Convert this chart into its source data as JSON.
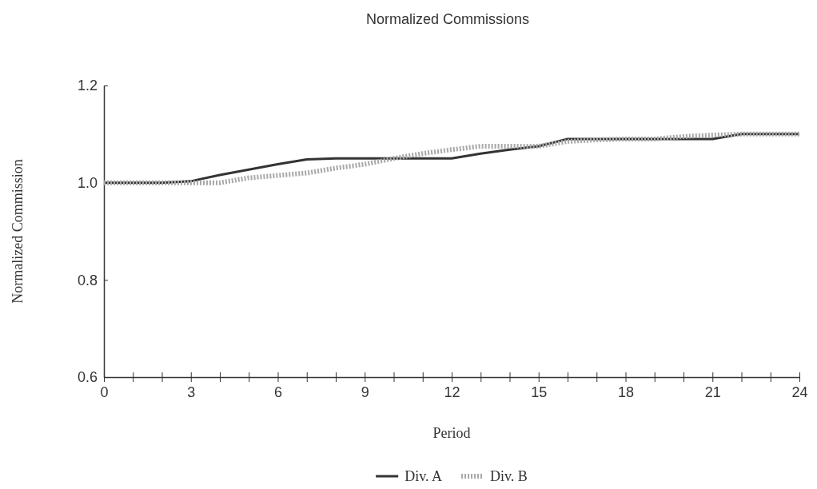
{
  "chart_data": {
    "type": "line",
    "title": "Normalized Commissions",
    "xlabel": "Period",
    "ylabel": "Normalized Commission",
    "xlim": [
      0,
      24
    ],
    "ylim": [
      0.6,
      1.2
    ],
    "xticks": [
      0,
      {
        "value": 1,
        "label": null
      },
      {
        "value": 2,
        "label": null
      },
      3,
      {
        "value": 4,
        "label": null
      },
      {
        "value": 5,
        "label": null
      },
      6,
      {
        "value": 7,
        "label": null
      },
      {
        "value": 8,
        "label": null
      },
      9,
      {
        "value": 10,
        "label": null
      },
      {
        "value": 11,
        "label": null
      },
      12,
      {
        "value": 13,
        "label": null
      },
      {
        "value": 14,
        "label": null
      },
      15,
      {
        "value": 16,
        "label": null
      },
      {
        "value": 17,
        "label": null
      },
      18,
      {
        "value": 19,
        "label": null
      },
      {
        "value": 20,
        "label": null
      },
      21,
      {
        "value": 22,
        "label": null
      },
      {
        "value": 23,
        "label": null
      },
      24
    ],
    "yticks": [
      0.6,
      0.8,
      {
        "value": 1,
        "label": "1.0"
      },
      1.2
    ],
    "x": [
      0,
      1,
      2,
      3,
      4,
      5,
      6,
      7,
      8,
      9,
      10,
      11,
      12,
      13,
      14,
      15,
      16,
      17,
      18,
      19,
      20,
      21,
      22,
      23,
      24
    ],
    "series": [
      {
        "name": "Div. A",
        "color": "#333333",
        "line_style": "solid",
        "values": [
          1.0,
          1.0,
          1.0,
          1.003,
          1.016,
          1.027,
          1.038,
          1.048,
          1.05,
          1.05,
          1.05,
          1.05,
          1.05,
          1.06,
          1.068,
          1.075,
          1.09,
          1.09,
          1.09,
          1.09,
          1.09,
          1.09,
          1.1,
          1.1,
          1.1
        ]
      },
      {
        "name": "Div. B",
        "color": "#a8a8a8",
        "line_style": "dotted",
        "values": [
          1.0,
          1.0,
          1.0,
          1.0,
          1.0,
          1.01,
          1.015,
          1.02,
          1.03,
          1.038,
          1.05,
          1.06,
          1.068,
          1.075,
          1.075,
          1.075,
          1.085,
          1.088,
          1.09,
          1.09,
          1.095,
          1.098,
          1.1,
          1.1,
          1.1
        ]
      }
    ],
    "grid": false,
    "legend": "bottom",
    "marker": "none"
  }
}
